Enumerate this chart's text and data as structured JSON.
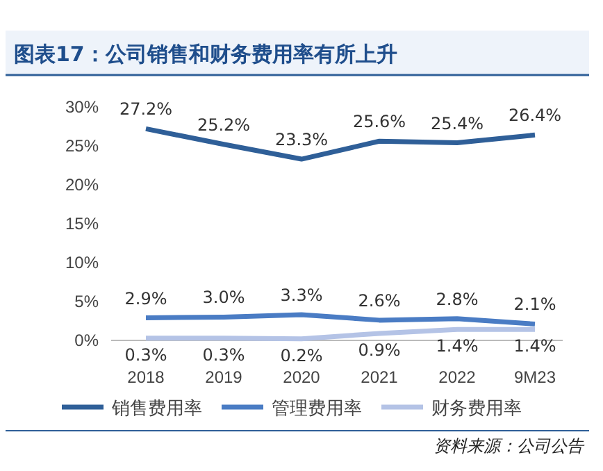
{
  "chart_data": {
    "type": "line",
    "title": "图表17：公司销售和财务费用率有所上升",
    "categories": [
      "2018",
      "2019",
      "2020",
      "2021",
      "2022",
      "9M23"
    ],
    "series": [
      {
        "name": "销售费用率",
        "color": "#2f5f98",
        "values": [
          27.2,
          25.2,
          23.3,
          25.6,
          25.4,
          26.4
        ],
        "value_labels": [
          "27.2%",
          "25.2%",
          "23.3%",
          "25.6%",
          "25.4%",
          "26.4%"
        ]
      },
      {
        "name": "管理费用率",
        "color": "#4a7cc4",
        "values": [
          2.9,
          3.0,
          3.3,
          2.6,
          2.8,
          2.1
        ],
        "value_labels": [
          "2.9%",
          "3.0%",
          "3.3%",
          "2.6%",
          "2.8%",
          "2.1%"
        ]
      },
      {
        "name": "财务费用率",
        "color": "#b4c3e6",
        "values": [
          0.3,
          0.3,
          0.2,
          0.9,
          1.4,
          1.4
        ],
        "value_labels": [
          "0.3%",
          "0.3%",
          "0.2%",
          "0.9%",
          "1.4%",
          "1.4%"
        ]
      }
    ],
    "ylim": [
      0,
      30
    ],
    "yticks": [
      {
        "value": 0,
        "label": "0%"
      },
      {
        "value": 5,
        "label": "5%"
      },
      {
        "value": 10,
        "label": "10%"
      },
      {
        "value": 15,
        "label": "15%"
      },
      {
        "value": 20,
        "label": "20%"
      },
      {
        "value": 25,
        "label": "25%"
      },
      {
        "value": 30,
        "label": "30%"
      }
    ],
    "grid": false,
    "legend": "bottom",
    "marker": "none",
    "line_style": "solid",
    "annotations": [
      "资料来源：公司公告"
    ]
  }
}
